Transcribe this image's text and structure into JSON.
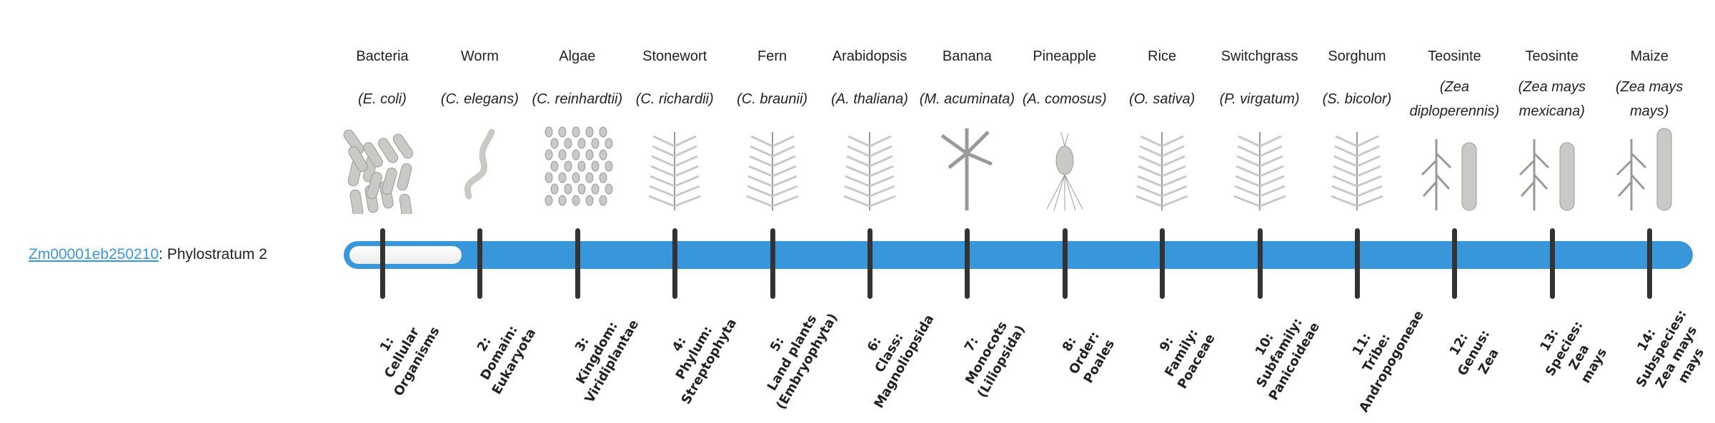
{
  "gene": {
    "id": "Zm00001eb250210",
    "suffix": ": Phylostratum 2",
    "phylostratum": 2,
    "max_phylostratum": 14
  },
  "colors": {
    "bar": "#3897db",
    "tick": "#333333",
    "link": "#3897db"
  },
  "organisms": [
    {
      "common": "Bacteria",
      "scientific": "(E. coli)",
      "icon": "bacteria-illustration"
    },
    {
      "common": "Worm",
      "scientific": "(C. elegans)",
      "icon": "worm-illustration"
    },
    {
      "common": "Algae",
      "scientific": "(C. reinhardtii)",
      "icon": "algae-illustration"
    },
    {
      "common": "Stonewort",
      "scientific": "(C. richardii)",
      "icon": "stonewort-illustration"
    },
    {
      "common": "Fern",
      "scientific": "(C. braunii)",
      "icon": "fern-illustration"
    },
    {
      "common": "Arabidopsis",
      "scientific": "(A. thaliana)",
      "icon": "arabidopsis-illustration"
    },
    {
      "common": "Banana",
      "scientific": "(M. acuminata)",
      "icon": "banana-illustration"
    },
    {
      "common": "Pineapple",
      "scientific": "(A. comosus)",
      "icon": "pineapple-illustration"
    },
    {
      "common": "Rice",
      "scientific": "(O. sativa)",
      "icon": "rice-illustration"
    },
    {
      "common": "Switchgrass",
      "scientific": "(P. virgatum)",
      "icon": "switchgrass-illustration"
    },
    {
      "common": "Sorghum",
      "scientific": "(S. bicolor)",
      "icon": "sorghum-illustration"
    },
    {
      "common": "Teosinte",
      "scientific": "(Zea diploperennis)",
      "icon": "teosinte-illustration"
    },
    {
      "common": "Teosinte",
      "scientific": "(Zea mays mexicana)",
      "icon": "teosinte-illustration"
    },
    {
      "common": "Maize",
      "scientific": "(Zea mays mays)",
      "icon": "maize-illustration"
    }
  ],
  "strata": [
    "1:\nCellular\nOrganisms",
    "2:\nDomain:\nEukaryota",
    "3:\nKingdom:\nViridiplantae",
    "4:\nPhylum:\nStreptophyta",
    "5:\nLand plants\n(Embryophyta)",
    "6:\nClass:\nMagnoliopsida",
    "7:\nMonocots\n(Liliopsida)",
    "8:\nOrder:\nPoales",
    "9:\nFamily:\nPoaceae",
    "10:\nSubfamily:\nPanicoideae",
    "11:\nTribe:\nAndropogoneae",
    "12:\nGenus:\nZea",
    "13:\nSpecies:\nZea\nmays",
    "14:\nSubspecies:\nZea mays\nmays"
  ]
}
